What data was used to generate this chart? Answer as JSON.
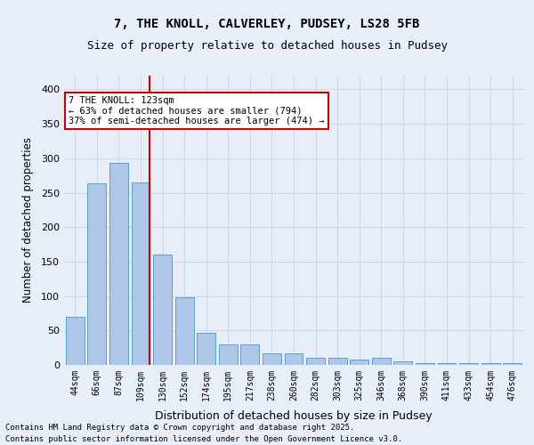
{
  "title1": "7, THE KNOLL, CALVERLEY, PUDSEY, LS28 5FB",
  "title2": "Size of property relative to detached houses in Pudsey",
  "xlabel": "Distribution of detached houses by size in Pudsey",
  "ylabel": "Number of detached properties",
  "categories": [
    "44sqm",
    "66sqm",
    "87sqm",
    "109sqm",
    "130sqm",
    "152sqm",
    "174sqm",
    "195sqm",
    "217sqm",
    "238sqm",
    "260sqm",
    "282sqm",
    "303sqm",
    "325sqm",
    "346sqm",
    "368sqm",
    "390sqm",
    "411sqm",
    "433sqm",
    "454sqm",
    "476sqm"
  ],
  "values": [
    70,
    263,
    293,
    265,
    160,
    98,
    47,
    30,
    30,
    17,
    17,
    10,
    10,
    8,
    10,
    5,
    2,
    2,
    2,
    2,
    2
  ],
  "bar_color": "#aec6e8",
  "bar_edge_color": "#5a9fd4",
  "annotation_text": "7 THE KNOLL: 123sqm\n← 63% of detached houses are smaller (794)\n37% of semi-detached houses are larger (474) →",
  "annotation_box_color": "#ffffff",
  "annotation_box_edge": "#cc0000",
  "vline_x": 3,
  "vline_color": "#cc0000",
  "grid_color": "#d0d8e8",
  "background_color": "#e8eef7",
  "plot_background": "#e8eef7",
  "footer1": "Contains HM Land Registry data © Crown copyright and database right 2025.",
  "footer2": "Contains public sector information licensed under the Open Government Licence v3.0.",
  "ylim": [
    0,
    420
  ],
  "yticks": [
    0,
    50,
    100,
    150,
    200,
    250,
    300,
    350,
    400
  ]
}
